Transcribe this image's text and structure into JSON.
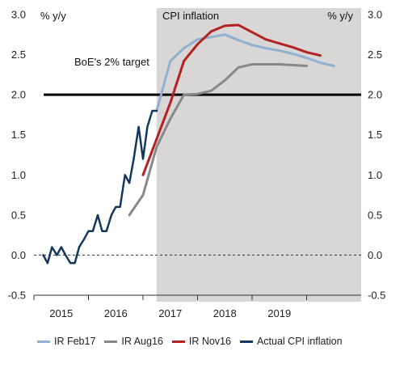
{
  "chart_data": {
    "type": "line",
    "title": "CPI inflation",
    "left_unit": "% y/y",
    "right_unit": "% y/y",
    "ylim": [
      -0.5,
      3.0
    ],
    "yticks": [
      "3.0",
      "2.5",
      "2.0",
      "1.5",
      "1.0",
      "0.5",
      "0.0",
      "-0.5"
    ],
    "xlim": [
      2014.5,
      2020.5
    ],
    "xticks": [
      "2015",
      "2016",
      "2017",
      "2018",
      "2019"
    ],
    "shaded_region_start": 2016.75,
    "target": {
      "label": "BoE's 2% target",
      "value": 2.0
    },
    "grid": false,
    "legend_position": "bottom",
    "series": [
      {
        "name": "IR Feb17",
        "color": "#8fb0cf",
        "x": [
          2016.75,
          2017.0,
          2017.25,
          2017.5,
          2017.75,
          2018.0,
          2018.25,
          2018.5,
          2018.75,
          2019.0,
          2019.25,
          2019.5,
          2019.75,
          2020.0
        ],
        "y": [
          1.8,
          2.42,
          2.58,
          2.69,
          2.72,
          2.75,
          2.68,
          2.62,
          2.58,
          2.55,
          2.51,
          2.46,
          2.4,
          2.36
        ]
      },
      {
        "name": "IR Aug16",
        "color": "#888888",
        "x": [
          2016.25,
          2016.5,
          2016.75,
          2017.0,
          2017.25,
          2017.5,
          2017.75,
          2018.0,
          2018.25,
          2018.5,
          2018.75,
          2019.0,
          2019.25,
          2019.5
        ],
        "y": [
          0.5,
          0.75,
          1.35,
          1.7,
          2.0,
          2.01,
          2.05,
          2.18,
          2.34,
          2.38,
          2.38,
          2.38,
          2.37,
          2.36
        ]
      },
      {
        "name": "IR Nov16",
        "color": "#b22222",
        "x": [
          2016.5,
          2016.75,
          2017.0,
          2017.25,
          2017.5,
          2017.75,
          2018.0,
          2018.25,
          2018.5,
          2018.75,
          2019.0,
          2019.25,
          2019.5,
          2019.75
        ],
        "y": [
          1.0,
          1.45,
          1.9,
          2.42,
          2.63,
          2.79,
          2.86,
          2.87,
          2.78,
          2.69,
          2.64,
          2.59,
          2.53,
          2.49
        ]
      },
      {
        "name": "Actual CPI inflation",
        "color": "#14385c",
        "x": [
          2014.67,
          2014.75,
          2014.83,
          2014.92,
          2015.0,
          2015.08,
          2015.17,
          2015.25,
          2015.33,
          2015.42,
          2015.5,
          2015.58,
          2015.67,
          2015.75,
          2015.83,
          2015.92,
          2016.0,
          2016.08,
          2016.17,
          2016.25,
          2016.33,
          2016.42,
          2016.5,
          2016.58,
          2016.67,
          2016.75
        ],
        "y": [
          0.0,
          -0.1,
          0.1,
          0.0,
          0.1,
          0.0,
          -0.1,
          -0.1,
          0.1,
          0.2,
          0.3,
          0.3,
          0.5,
          0.3,
          0.3,
          0.5,
          0.6,
          0.6,
          1.0,
          0.9,
          1.2,
          1.6,
          1.2,
          1.6,
          1.8,
          1.8
        ]
      }
    ]
  }
}
